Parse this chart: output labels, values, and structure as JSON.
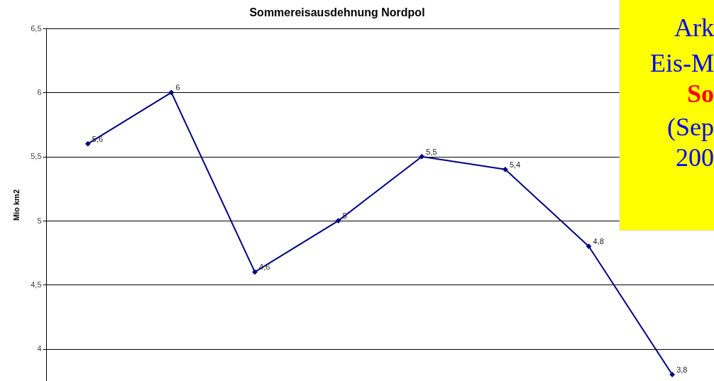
{
  "chart_data": {
    "type": "line",
    "title": "Sommereisausdehnung Nordpol",
    "ylabel": "Mio km2",
    "categories": [
      null,
      null,
      null,
      null,
      null,
      null,
      null,
      null
    ],
    "series": [
      {
        "color": "#000080",
        "values": [
          5.6,
          6,
          4.6,
          5,
          5.5,
          5.4,
          4.8,
          3.8
        ],
        "value_labels": [
          "5,6",
          "6",
          "4,6",
          "5",
          "5,5",
          "5,4",
          "4,8",
          "3,8"
        ]
      }
    ],
    "ylim": [
      3.75,
      6.5
    ],
    "yticks": [
      4,
      {
        "value": 4.5,
        "label": "4,5"
      },
      5,
      {
        "value": 5.5,
        "label": "5,5"
      },
      6,
      {
        "value": 6.5,
        "label": "6,5"
      }
    ],
    "grid": "y",
    "marker": "diamond",
    "line_style": "solid",
    "annotations": [
      "Ark",
      "Eis-M",
      "So",
      "(Sep",
      "200"
    ]
  }
}
